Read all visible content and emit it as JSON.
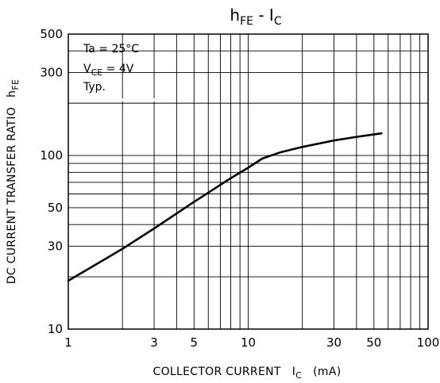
{
  "chart_data": {
    "type": "line",
    "title": {
      "main": "h",
      "main_sub": "FE",
      "sep": " - ",
      "rhs": "I",
      "rhs_sub": "C"
    },
    "xlabel": {
      "main": "COLLECTOR CURRENT",
      "sym": "I",
      "sym_sub": "C",
      "unit": "(mA)"
    },
    "ylabel": {
      "main": "DC CURRENT TRANSFER RATIO",
      "sym": "h",
      "sym_sub": "FE"
    },
    "x_scale": "log",
    "y_scale": "log",
    "xlim": [
      1,
      100
    ],
    "ylim": [
      10,
      500
    ],
    "x_ticks": [
      1,
      3,
      5,
      10,
      30,
      50,
      100
    ],
    "x_tick_labels": [
      "1",
      "3",
      "5",
      "10",
      "30",
      "50",
      "100"
    ],
    "y_ticks": [
      10,
      30,
      50,
      100,
      300,
      500
    ],
    "y_tick_labels": [
      "10",
      "30",
      "50",
      "100",
      "300",
      "500"
    ],
    "grid": true,
    "annotation": {
      "line1": "Ta = 25°C",
      "line2_main": "V",
      "line2_sub": "CE",
      "line2_rest": " = 4V",
      "line3": "Typ."
    },
    "series": [
      {
        "x": [
          1,
          2,
          3,
          5,
          8,
          10,
          12,
          15,
          20,
          30,
          40,
          55
        ],
        "y": [
          19,
          29,
          38,
          54,
          74,
          85,
          96,
          104,
          112,
          122,
          128,
          134
        ]
      }
    ]
  }
}
